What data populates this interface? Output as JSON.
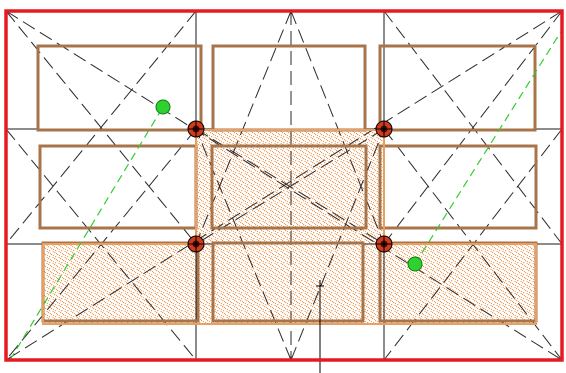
{
  "colors": {
    "background": "#ffffff",
    "frame": "#e51b23",
    "grid_line": "#1a1a1a",
    "guide_dash": "#2a2a2a",
    "panel_outline": "#a8744a",
    "selection_outline": "#e8a062",
    "selection_stipple": "#ee8a3a",
    "snap_point_fill": "#d23a1c",
    "snap_point_core": "#3a0f08",
    "green_point": "#2fd12f",
    "green_dash": "#33cc33",
    "cursor": "#000000"
  },
  "canvas": {
    "grid": {
      "columns": 3,
      "rows": 3
    },
    "selected_cells": [
      {
        "column": 2,
        "row": 2
      },
      {
        "column": 1,
        "row": 3
      },
      {
        "column": 2,
        "row": 3
      },
      {
        "column": 3,
        "row": 3
      }
    ],
    "snap_points": [
      "snap-point-top-left",
      "snap-point-top-right",
      "snap-point-bottom-left",
      "snap-point-bottom-right"
    ],
    "green_points": [
      "green-point-start",
      "green-point-end"
    ],
    "cursor_icon": "crosshair-cursor-icon"
  }
}
